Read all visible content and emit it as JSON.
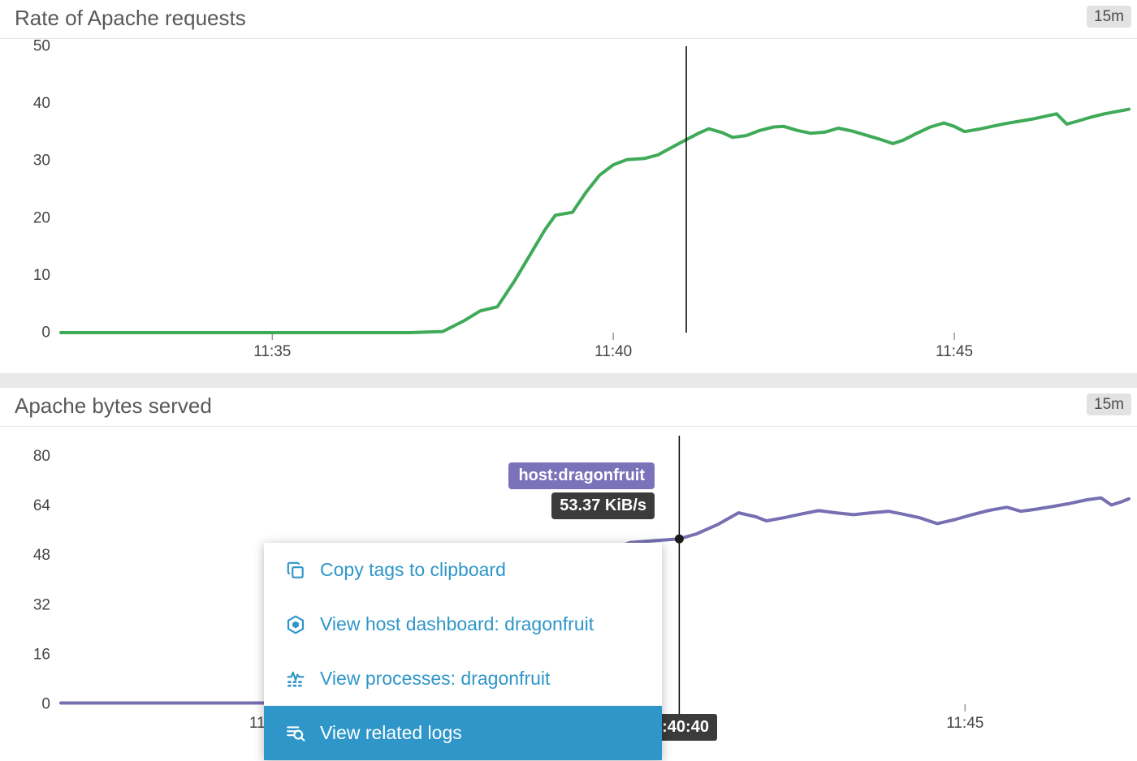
{
  "panels": [
    {
      "title": "Rate of Apache requests",
      "range_badge": "15m"
    },
    {
      "title": "Apache bytes served",
      "range_badge": "15m"
    }
  ],
  "chart_data": [
    {
      "type": "line",
      "title": "Rate of Apache requests",
      "time_window": "15m",
      "xlim": [
        31.9,
        47.56
      ],
      "ylim": [
        0,
        50
      ],
      "y_ticks": [
        0,
        10,
        20,
        30,
        40,
        50
      ],
      "x_ticks": [
        {
          "t": 35,
          "label": "11:35"
        },
        {
          "t": 40,
          "label": "11:40"
        },
        {
          "t": 45,
          "label": "11:45"
        }
      ],
      "cursor_t": 41.07,
      "series": [
        {
          "name": "apache requests",
          "color": "#3faa58",
          "points": [
            [
              31.9,
              0
            ],
            [
              33,
              0
            ],
            [
              34.5,
              0
            ],
            [
              36,
              0
            ],
            [
              37,
              0
            ],
            [
              37.5,
              0.2
            ],
            [
              37.8,
              2
            ],
            [
              38.05,
              3.8
            ],
            [
              38.3,
              4.5
            ],
            [
              38.55,
              9
            ],
            [
              38.8,
              14
            ],
            [
              39,
              18
            ],
            [
              39.15,
              20.5
            ],
            [
              39.4,
              21
            ],
            [
              39.6,
              24.5
            ],
            [
              39.8,
              27.5
            ],
            [
              40,
              29.3
            ],
            [
              40.2,
              30.2
            ],
            [
              40.45,
              30.4
            ],
            [
              40.65,
              31
            ],
            [
              40.9,
              32.6
            ],
            [
              41.07,
              33.7
            ],
            [
              41.25,
              34.8
            ],
            [
              41.4,
              35.6
            ],
            [
              41.6,
              34.9
            ],
            [
              41.75,
              34.1
            ],
            [
              41.95,
              34.4
            ],
            [
              42.15,
              35.3
            ],
            [
              42.35,
              35.9
            ],
            [
              42.5,
              36
            ],
            [
              42.7,
              35.3
            ],
            [
              42.9,
              34.8
            ],
            [
              43.1,
              35
            ],
            [
              43.3,
              35.7
            ],
            [
              43.5,
              35.2
            ],
            [
              43.7,
              34.5
            ],
            [
              43.9,
              33.8
            ],
            [
              44.1,
              33
            ],
            [
              44.25,
              33.6
            ],
            [
              44.45,
              34.8
            ],
            [
              44.65,
              35.9
            ],
            [
              44.85,
              36.6
            ],
            [
              45,
              36
            ],
            [
              45.15,
              35.1
            ],
            [
              45.35,
              35.5
            ],
            [
              45.55,
              36
            ],
            [
              45.75,
              36.5
            ],
            [
              45.95,
              36.9
            ],
            [
              46.15,
              37.3
            ],
            [
              46.35,
              37.8
            ],
            [
              46.5,
              38.2
            ],
            [
              46.65,
              36.4
            ],
            [
              46.8,
              36.9
            ],
            [
              47,
              37.6
            ],
            [
              47.2,
              38.2
            ],
            [
              47.56,
              39
            ]
          ]
        }
      ]
    },
    {
      "type": "line",
      "title": "Apache bytes served",
      "time_window": "15m",
      "xlim": [
        32.03,
        47.35
      ],
      "ylim": [
        0,
        86.7
      ],
      "y_ticks": [
        0,
        16,
        32,
        48,
        64,
        80
      ],
      "x_ticks": [
        {
          "t": 35,
          "label": "11:35"
        },
        {
          "t": 40,
          "label": "11:40"
        },
        {
          "t": 45,
          "label": "11:45"
        }
      ],
      "cursor_t": 40.9,
      "cursor_time_label": "11:40:40",
      "marker": {
        "t": 40.9,
        "value": 53.37
      },
      "series": [
        {
          "name": "host:dragonfruit",
          "color": "#7670b3",
          "points": [
            [
              32.03,
              0.4
            ],
            [
              33.5,
              0.4
            ],
            [
              35,
              0.4
            ],
            [
              36.5,
              0.4
            ],
            [
              37.5,
              0.5
            ],
            [
              38,
              4
            ],
            [
              38.5,
              16
            ],
            [
              39,
              32
            ],
            [
              39.5,
              44
            ],
            [
              39.9,
              50
            ],
            [
              40.2,
              52.2
            ],
            [
              40.55,
              52.8
            ],
            [
              40.9,
              53.37
            ],
            [
              41.15,
              55
            ],
            [
              41.45,
              58
            ],
            [
              41.75,
              61.8
            ],
            [
              42,
              60.5
            ],
            [
              42.15,
              59.2
            ],
            [
              42.4,
              60.2
            ],
            [
              42.65,
              61.4
            ],
            [
              42.9,
              62.5
            ],
            [
              43.15,
              61.8
            ],
            [
              43.4,
              61.2
            ],
            [
              43.65,
              61.8
            ],
            [
              43.9,
              62.3
            ],
            [
              44.1,
              61.4
            ],
            [
              44.35,
              60.2
            ],
            [
              44.6,
              58.3
            ],
            [
              44.85,
              59.6
            ],
            [
              45.1,
              61.2
            ],
            [
              45.35,
              62.6
            ],
            [
              45.6,
              63.6
            ],
            [
              45.8,
              62.3
            ],
            [
              46,
              62.9
            ],
            [
              46.25,
              63.8
            ],
            [
              46.5,
              64.8
            ],
            [
              46.75,
              66
            ],
            [
              46.95,
              66.6
            ],
            [
              47.1,
              64.3
            ],
            [
              47.25,
              65.4
            ],
            [
              47.35,
              66.3
            ]
          ]
        }
      ]
    }
  ],
  "tooltip": {
    "tag": "host:dragonfruit",
    "value": "53.37 KiB/s",
    "tag_bg": "#7b72ba",
    "value_bg": "#3b3b3b"
  },
  "context_menu": {
    "accent": "#2e96c9",
    "items": [
      {
        "label": "Copy tags to clipboard",
        "icon": "copy-icon",
        "highlighted": false
      },
      {
        "label": "View host dashboard: dragonfruit",
        "icon": "host-hexagon-icon",
        "highlighted": false
      },
      {
        "label": "View processes: dragonfruit",
        "icon": "processes-icon",
        "highlighted": false
      },
      {
        "label": "View related logs",
        "icon": "related-logs-icon",
        "highlighted": true
      }
    ]
  }
}
